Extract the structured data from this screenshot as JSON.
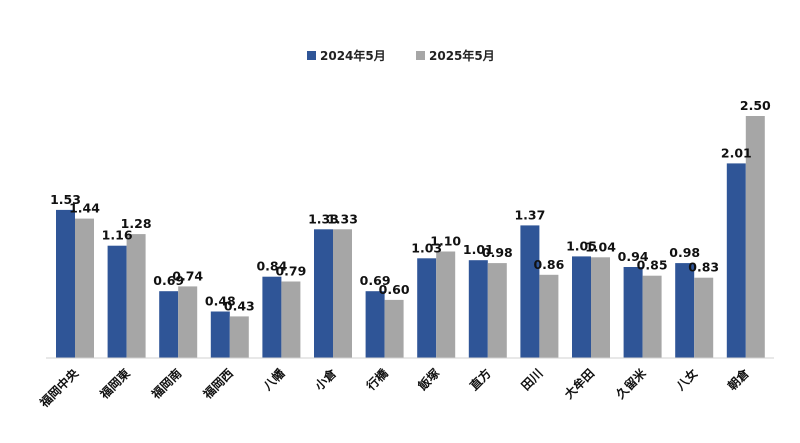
{
  "chart_data": {
    "type": "bar",
    "categories": [
      "福岡中央",
      "福岡東",
      "福岡南",
      "福岡西",
      "八幡",
      "小倉",
      "行橋",
      "飯塚",
      "直方",
      "田川",
      "大牟田",
      "久留米",
      "八女",
      "朝倉"
    ],
    "series": [
      {
        "name": "2024年5月",
        "color": "#2f5597",
        "values": [
          1.53,
          1.16,
          0.69,
          0.48,
          0.84,
          1.33,
          0.69,
          1.03,
          1.01,
          1.37,
          1.05,
          0.94,
          0.98,
          2.01
        ],
        "labels": [
          "1.53",
          "1.16",
          "0.69",
          "0.48",
          "0.84",
          "1.33",
          "0.69",
          "1.03",
          "1.01",
          "1.37",
          "1.05",
          "0.94",
          "0.98",
          "2.01"
        ]
      },
      {
        "name": "2025年5月",
        "color": "#a6a6a6",
        "values": [
          1.44,
          1.28,
          0.74,
          0.43,
          0.79,
          1.33,
          0.6,
          1.1,
          0.98,
          0.86,
          1.04,
          0.85,
          0.83,
          2.5
        ],
        "labels": [
          "1.44",
          "1.28",
          "0.74",
          "0.43",
          "0.79",
          "1.33",
          "0.60",
          "1.10",
          "0.98",
          "0.86",
          "1.04",
          "0.85",
          "0.83",
          "2.50"
        ]
      }
    ],
    "ylim": [
      0,
      2.5
    ],
    "grid": false,
    "legend": "top-center"
  }
}
